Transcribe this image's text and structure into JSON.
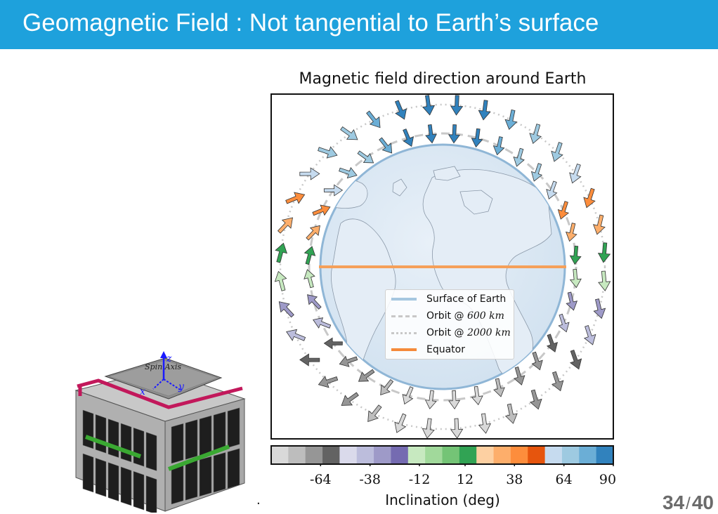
{
  "slide": {
    "title": "Geomagnetic Field : Not tangential to Earth’s surface",
    "page_current": "34",
    "page_separator": "/",
    "page_total": "40",
    "footnote_dot": "."
  },
  "cubesat": {
    "axis_label": "Spin Axis",
    "x_label": "x",
    "y_label": "y",
    "z_label": "z"
  },
  "chart_data": {
    "type": "diagram",
    "title": "Magnetic field direction around Earth",
    "legend": {
      "placement": "center-bottom",
      "items": [
        {
          "name": "Surface of Earth",
          "style": "solid",
          "color": "#a6c7e0"
        },
        {
          "name": "Orbit @ 600 km",
          "prefix": "Orbit @ ",
          "value": "600",
          "unit": "km",
          "style": "dashed",
          "color": "#c8c8c8"
        },
        {
          "name": "Orbit @ 2000 km",
          "prefix": "Orbit @ ",
          "value": "2000",
          "unit": "km",
          "style": "dotted",
          "color": "#c8c8c8"
        },
        {
          "name": "Equator",
          "style": "solid",
          "color": "#f5a05a"
        }
      ]
    },
    "orbits": [
      {
        "name": "inner",
        "altitude_km": 600,
        "arrow_count": 36
      },
      {
        "name": "outer",
        "altitude_km": 2000,
        "arrow_count": 36
      }
    ],
    "colorbar": {
      "label": "Inclination (deg)",
      "range": [
        -90,
        90
      ],
      "tick_labels": [
        "-64",
        "-38",
        "-12",
        "12",
        "38",
        "64",
        "90"
      ],
      "tick_values": [
        -64,
        -38,
        -12,
        12,
        38,
        64,
        90
      ],
      "colors": [
        "#d9d9d9",
        "#bdbdbd",
        "#969696",
        "#636363",
        "#dadaeb",
        "#bcbddc",
        "#9e9ac8",
        "#756bb1",
        "#c7e9c0",
        "#a1d99b",
        "#74c476",
        "#31a354",
        "#fdd0a2",
        "#fdae6b",
        "#fd8d3c",
        "#e6550d",
        "#c6dbef",
        "#9ecae1",
        "#6baed6",
        "#3182bd"
      ]
    }
  }
}
